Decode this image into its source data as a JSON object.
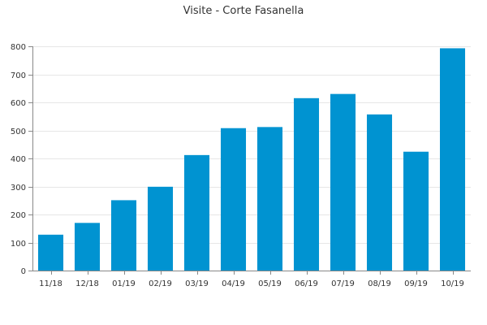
{
  "chart_data": {
    "type": "bar",
    "title": "Visite - Corte Fasanella",
    "categories": [
      "11/18",
      "12/18",
      "01/19",
      "02/19",
      "03/19",
      "04/19",
      "05/19",
      "06/19",
      "07/19",
      "08/19",
      "09/19",
      "10/19"
    ],
    "values": [
      128,
      170,
      251,
      299,
      412,
      508,
      512,
      615,
      630,
      557,
      424,
      793
    ],
    "yticks": [
      0,
      100,
      200,
      300,
      400,
      500,
      600,
      700,
      800
    ],
    "ylim": [
      0,
      800
    ],
    "grid": true,
    "bar_color": "#0093d1"
  }
}
